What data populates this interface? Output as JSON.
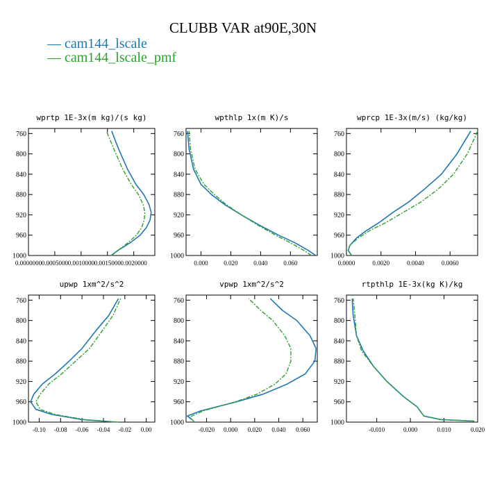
{
  "title": "CLUBB VAR at90E,30N",
  "legend": [
    {
      "symbol": "—",
      "label": "cam144_lscale",
      "color": "#1f77b4"
    },
    {
      "symbol": "—",
      "label": "cam144_lscale_pmf",
      "color": "#2ca02c"
    }
  ],
  "chart_data": [
    {
      "type": "line",
      "title": "wprtp   1E-3x(m kg)/(s kg)",
      "ylim": [
        1000,
        750
      ],
      "yticks": [
        760,
        800,
        840,
        880,
        920,
        960,
        1000
      ],
      "xlim": [
        0.0,
        0.0024
      ],
      "xticks": [
        0.0,
        0.0005,
        0.001,
        0.0015,
        0.002
      ],
      "xticklabels": [
        "0.0000000",
        "0.0005000",
        "0.0010000",
        "0.0015000",
        "0.0020000"
      ],
      "series": [
        {
          "name": "cam144_lscale",
          "color": "#1f77b4",
          "dashed": false,
          "x": [
            0.00157,
            0.0017,
            0.00193,
            0.00212,
            0.00224,
            0.00231,
            0.00233,
            0.00229,
            0.00219,
            0.00204,
            0.00188,
            0.00171,
            0.00158
          ],
          "y": [
            1000,
            990,
            975,
            960,
            945,
            930,
            915,
            900,
            880,
            860,
            830,
            790,
            755
          ]
        },
        {
          "name": "cam144_lscale_pmf",
          "color": "#2ca02c",
          "dashed": true,
          "x": [
            0.00158,
            0.0017,
            0.00189,
            0.00205,
            0.00215,
            0.0022,
            0.00221,
            0.00218,
            0.00209,
            0.00195,
            0.00179,
            0.00162,
            0.00148
          ],
          "y": [
            1000,
            990,
            975,
            960,
            945,
            930,
            915,
            900,
            880,
            860,
            830,
            790,
            755
          ]
        }
      ]
    },
    {
      "type": "line",
      "title": "wpthlp   1x(m K)/s",
      "ylim": [
        1000,
        750
      ],
      "yticks": [
        760,
        800,
        840,
        880,
        920,
        960,
        1000
      ],
      "xlim": [
        -0.01,
        0.078
      ],
      "xticks": [
        0.0,
        0.02,
        0.04,
        0.06
      ],
      "xticklabels": [
        "0.000",
        "0.020",
        "0.040",
        "0.060"
      ],
      "series": [
        {
          "name": "cam144_lscale",
          "color": "#1f77b4",
          "dashed": false,
          "x": [
            0.077,
            0.072,
            0.063,
            0.052,
            0.039,
            0.027,
            0.016,
            0.007,
            0.0,
            -0.005,
            -0.008,
            -0.009
          ],
          "y": [
            1000,
            990,
            975,
            960,
            940,
            920,
            900,
            880,
            860,
            830,
            790,
            755
          ]
        },
        {
          "name": "cam144_lscale_pmf",
          "color": "#2ca02c",
          "dashed": true,
          "x": [
            0.074,
            0.069,
            0.06,
            0.05,
            0.038,
            0.027,
            0.017,
            0.009,
            0.002,
            -0.004,
            -0.007,
            -0.008
          ],
          "y": [
            1000,
            990,
            975,
            960,
            940,
            920,
            900,
            880,
            860,
            830,
            790,
            755
          ]
        }
      ]
    },
    {
      "type": "line",
      "title": "wprcp   1E-3x(m/s) (kg/kg)",
      "ylim": [
        1000,
        750
      ],
      "yticks": [
        760,
        800,
        840,
        880,
        920,
        960,
        1000
      ],
      "xlim": [
        0.0,
        0.0076
      ],
      "xticks": [
        0.0,
        0.002,
        0.004,
        0.006
      ],
      "xticklabels": [
        "0.0000",
        "0.0020",
        "0.0040",
        "0.0060"
      ],
      "series": [
        {
          "name": "cam144_lscale",
          "color": "#1f77b4",
          "dashed": false,
          "x": [
            0.0003,
            0.0001,
            0.0002,
            0.0006,
            0.0012,
            0.0019,
            0.0027,
            0.0036,
            0.0045,
            0.0055,
            0.0064,
            0.0072
          ],
          "y": [
            1000,
            990,
            980,
            965,
            950,
            935,
            915,
            895,
            870,
            840,
            800,
            755
          ]
        },
        {
          "name": "cam144_lscale_pmf",
          "color": "#2ca02c",
          "dashed": true,
          "x": [
            0.0003,
            0.0001,
            0.0002,
            0.0007,
            0.0014,
            0.0023,
            0.0033,
            0.0043,
            0.0053,
            0.0062,
            0.007,
            0.0076
          ],
          "y": [
            1000,
            990,
            980,
            965,
            950,
            935,
            915,
            895,
            870,
            840,
            800,
            755
          ]
        }
      ]
    },
    {
      "type": "line",
      "title": "upwp   1xm^2/s^2",
      "ylim": [
        1000,
        750
      ],
      "yticks": [
        760,
        800,
        840,
        880,
        920,
        960,
        1000
      ],
      "xlim": [
        -0.11,
        0.008
      ],
      "xticks": [
        -0.1,
        -0.08,
        -0.06,
        -0.04,
        -0.02,
        0.0
      ],
      "xticklabels": [
        "-0.10",
        "-0.08",
        "-0.06",
        "-0.04",
        "-0.02",
        "0.00"
      ],
      "series": [
        {
          "name": "cam144_lscale",
          "color": "#1f77b4",
          "dashed": false,
          "x": [
            -0.028,
            -0.06,
            -0.088,
            -0.103,
            -0.108,
            -0.105,
            -0.097,
            -0.085,
            -0.072,
            -0.06,
            -0.047,
            -0.035,
            -0.026
          ],
          "y": [
            1000,
            995,
            985,
            975,
            960,
            945,
            925,
            905,
            880,
            855,
            820,
            790,
            757
          ]
        },
        {
          "name": "cam144_lscale_pmf",
          "color": "#2ca02c",
          "dashed": true,
          "x": [
            -0.026,
            -0.058,
            -0.085,
            -0.099,
            -0.103,
            -0.099,
            -0.091,
            -0.079,
            -0.066,
            -0.053,
            -0.041,
            -0.031,
            -0.024
          ],
          "y": [
            1000,
            995,
            985,
            975,
            960,
            945,
            925,
            905,
            880,
            855,
            820,
            790,
            757
          ]
        }
      ]
    },
    {
      "type": "line",
      "title": "vpwp   1xm^2/s^2",
      "ylim": [
        1000,
        750
      ],
      "yticks": [
        760,
        800,
        840,
        880,
        920,
        960,
        1000
      ],
      "xlim": [
        -0.037,
        0.072
      ],
      "xticks": [
        -0.02,
        0.0,
        0.02,
        0.04,
        0.06
      ],
      "xticklabels": [
        "-0.020",
        "0.000",
        "0.020",
        "0.040",
        "0.060"
      ],
      "series": [
        {
          "name": "cam144_lscale",
          "color": "#1f77b4",
          "dashed": false,
          "x": [
            -0.032,
            -0.036,
            -0.025,
            0.005,
            0.027,
            0.047,
            0.062,
            0.07,
            0.071,
            0.066,
            0.055,
            0.043,
            0.033
          ],
          "y": [
            995,
            988,
            978,
            960,
            945,
            925,
            905,
            880,
            855,
            830,
            800,
            780,
            757
          ]
        },
        {
          "name": "cam144_lscale_pmf",
          "color": "#2ca02c",
          "dashed": true,
          "x": [
            -0.03,
            -0.034,
            -0.023,
            0.004,
            0.022,
            0.037,
            0.046,
            0.05,
            0.05,
            0.045,
            0.035,
            0.025,
            0.015
          ],
          "y": [
            1000,
            990,
            978,
            960,
            945,
            925,
            905,
            880,
            855,
            830,
            800,
            780,
            757
          ]
        }
      ]
    },
    {
      "type": "line",
      "title": "rtpthlp   1E-3x(kg K)/kg",
      "ylim": [
        1000,
        750
      ],
      "yticks": [
        760,
        800,
        840,
        880,
        920,
        960,
        1000
      ],
      "xlim": [
        -0.019,
        0.02
      ],
      "xticks": [
        -0.01,
        0.0,
        0.01,
        0.02
      ],
      "xticklabels": [
        "-0.010",
        "0.000",
        "0.010",
        "0.020"
      ],
      "series": [
        {
          "name": "cam144_lscale",
          "color": "#1f77b4",
          "dashed": false,
          "x": [
            0.019,
            0.009,
            0.004,
            0.002,
            -0.002,
            -0.007,
            -0.011,
            -0.014,
            -0.016,
            -0.017,
            -0.0173
          ],
          "y": [
            998,
            995,
            988,
            970,
            950,
            920,
            890,
            860,
            830,
            790,
            757
          ]
        },
        {
          "name": "cam144_lscale_pmf",
          "color": "#2ca02c",
          "dashed": true,
          "x": [
            0.019,
            0.009,
            0.004,
            0.002,
            -0.002,
            -0.007,
            -0.011,
            -0.0145,
            -0.016,
            -0.0165,
            -0.017
          ],
          "y": [
            998,
            995,
            988,
            970,
            950,
            920,
            890,
            860,
            830,
            790,
            757
          ]
        }
      ]
    }
  ]
}
